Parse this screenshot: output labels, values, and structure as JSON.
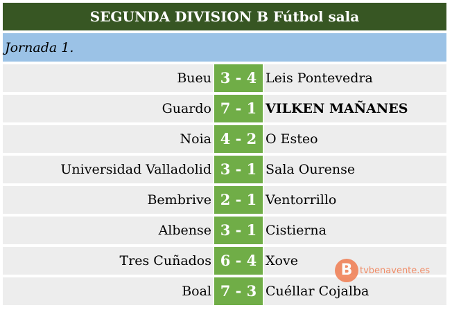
{
  "title": "SEGUNDA DIVISION B Fútbol sala",
  "round": "Jornada 1.",
  "matches": [
    {
      "home": "Bueu",
      "score": "3 - 4",
      "away": "Leis Pontevedra"
    },
    {
      "home": "Guardo",
      "score": "7 - 1",
      "away": "VILKEN MAÑANES"
    },
    {
      "home": "Noia",
      "score": "4 - 2",
      "away": "O Esteo"
    },
    {
      "home": "Universidad Valladolid",
      "score": "3 - 1",
      "away": "Sala Ourense"
    },
    {
      "home": "Bembrive",
      "score": "2 - 1",
      "away": "Ventorrillo"
    },
    {
      "home": "Albense",
      "score": "3 - 1",
      "away": "Cistierna"
    },
    {
      "home": "Tres Cuñados",
      "score": "6 - 4",
      "away": "Xove"
    },
    {
      "home": "Boal",
      "score": "7 - 3",
      "away": "Cuéllar Cojalba"
    }
  ],
  "watermark": {
    "text": "tvbenavente.es",
    "color": "#f07c50"
  },
  "colors": {
    "header": "#375623",
    "round": "#9bc2e6",
    "score": "#70ad47",
    "row": "#ededed"
  }
}
